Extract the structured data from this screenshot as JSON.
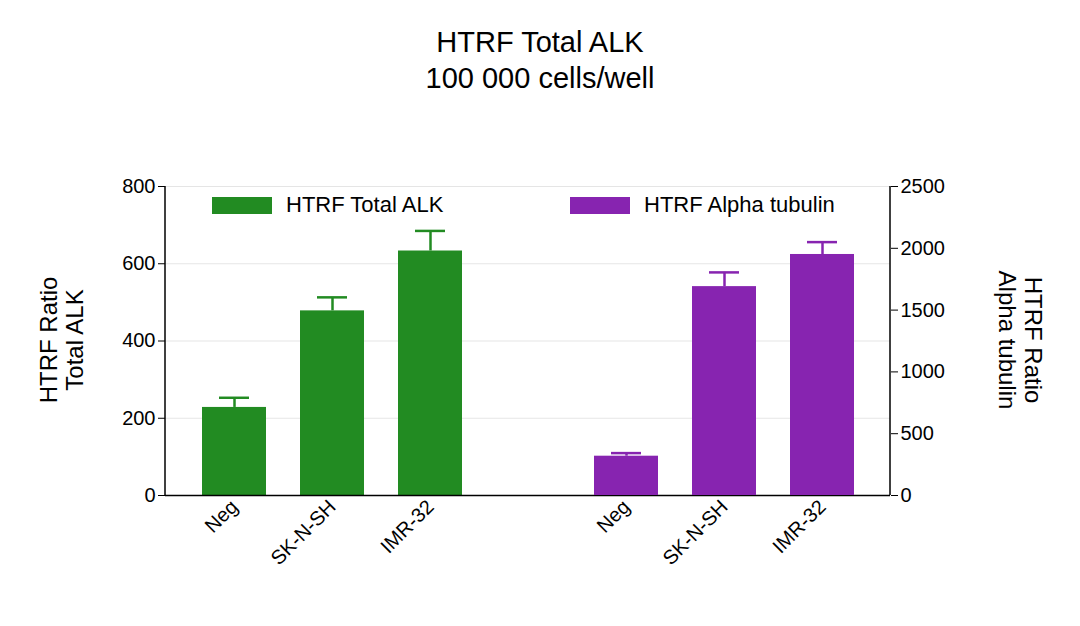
{
  "chart_data": {
    "type": "bar",
    "title": "HTRF Total ALK",
    "subtitle": "100 000 cells/well",
    "categories": [
      "Neg",
      "SK-N-SH",
      "IMR-32",
      null,
      "Neg",
      "SK-N-SH",
      "IMR-32"
    ],
    "series": [
      {
        "name": "HTRF Total ALK",
        "color": "#228B22",
        "values": [
          228,
          478,
          633,
          null,
          null,
          null,
          null
        ],
        "errors": [
          25,
          35,
          52,
          null,
          null,
          null,
          null
        ]
      },
      {
        "name": "HTRF Alpha tubulin",
        "color": "#8724B0",
        "axis": "y2",
        "values": [
          null,
          null,
          null,
          null,
          318,
          1690,
          1950
        ],
        "errors": [
          null,
          null,
          null,
          null,
          25,
          115,
          100
        ]
      }
    ],
    "ylabel": "HTRF Ratio\nTotal ALK",
    "y2label": "HTRF Ratio\nAlpha tubulin",
    "ylim": [
      0,
      800
    ],
    "yticks": [
      0,
      200,
      400,
      600,
      800
    ],
    "y2lim": [
      0,
      2500
    ],
    "y2ticks": [
      0,
      500,
      1000,
      1500,
      2000,
      2500
    ],
    "grid": true,
    "legend": "top"
  }
}
